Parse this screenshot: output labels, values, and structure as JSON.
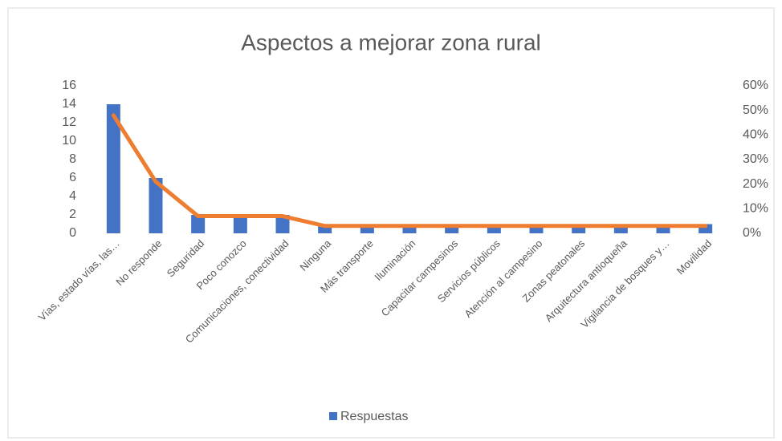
{
  "chart_data": {
    "type": "bar_line",
    "title": "Aspectos a mejorar zona rural",
    "categories": [
      "Vías, estado vías, las…",
      "No responde",
      "Seguridad",
      "Poco conozco",
      "Comunicaciones, conectividad",
      "Ninguna",
      "Más transporte",
      "Iluminación",
      "Capacitar campesinos",
      "Servicios públicos",
      "Atención al campesino",
      "Zonas peatonales",
      "Arquitectura antioqueña",
      "Vigilancia de bosques y…",
      "Movilidad"
    ],
    "series": [
      {
        "name": "Respuestas",
        "color": "#4472c4",
        "values": [
          14,
          6,
          2,
          2,
          2,
          1,
          1,
          1,
          1,
          1,
          1,
          1,
          1,
          1,
          1
        ]
      },
      {
        "color": "#ed7d31",
        "axis": "y2",
        "values": [
          48,
          21,
          7,
          7,
          7,
          3,
          3,
          3,
          3,
          3,
          3,
          3,
          3,
          3,
          3
        ]
      }
    ],
    "ylim": [
      0,
      16
    ],
    "yticks": [
      0,
      2,
      4,
      6,
      8,
      10,
      12,
      14,
      16
    ],
    "y2lim": [
      0,
      60
    ],
    "y2ticks": [
      {
        "value": 0,
        "label": "0%"
      },
      {
        "value": 10,
        "label": "10%"
      },
      {
        "value": 20,
        "label": "20%"
      },
      {
        "value": 30,
        "label": "30%"
      },
      {
        "value": 40,
        "label": "40%"
      },
      {
        "value": 50,
        "label": "50%"
      },
      {
        "value": 60,
        "label": "60%"
      }
    ],
    "legend": "bottom"
  }
}
